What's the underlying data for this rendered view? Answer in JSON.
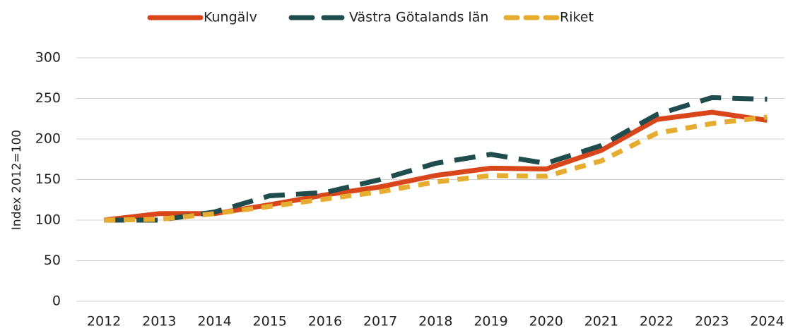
{
  "chart_data": {
    "type": "line",
    "y_label": "Index 2012=100",
    "categories": [
      "2012",
      "2013",
      "2014",
      "2015",
      "2016",
      "2017",
      "2018",
      "2019",
      "2020",
      "2021",
      "2022",
      "2023",
      "2024"
    ],
    "series": [
      {
        "name": "Kungälv",
        "color": "#d9461c",
        "values": [
          100,
          108,
          108,
          119,
          131,
          141,
          155,
          164,
          163,
          186,
          224,
          233,
          223
        ]
      },
      {
        "name": "Västra Götalands län",
        "color": "#1f4d4e",
        "values": [
          100,
          100,
          110,
          130,
          134,
          150,
          170,
          181,
          170,
          192,
          230,
          251,
          249
        ]
      },
      {
        "name": "Riket",
        "color": "#e5ac2f",
        "values": [
          100,
          101,
          108,
          117,
          126,
          135,
          147,
          155,
          154,
          173,
          207,
          219,
          227
        ]
      }
    ],
    "ylim": [
      0,
      300
    ],
    "yticks": [
      0,
      50,
      100,
      150,
      200,
      250,
      300
    ],
    "grid": true,
    "legend": "top"
  }
}
